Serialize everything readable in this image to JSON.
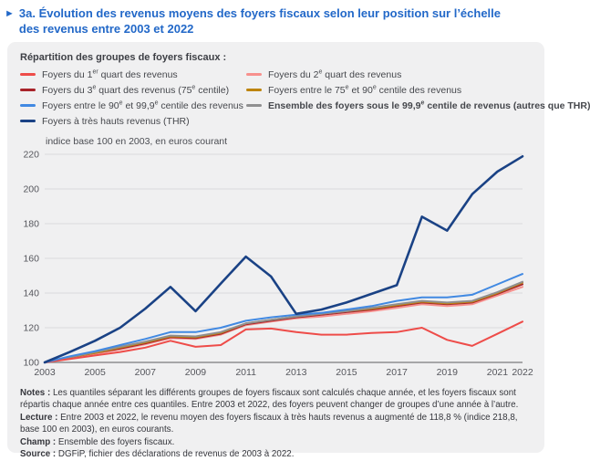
{
  "title": {
    "arrow": "►",
    "lines": [
      "3a. Évolution des revenus moyens des foyers fiscaux selon leur position sur l’échelle",
      "des revenus entre 2003 et 2022"
    ]
  },
  "legend": {
    "header": "Répartition des groupes de foyers fiscaux :",
    "items": [
      {
        "label": "Foyers du 1^{er} quart des revenus",
        "color": "#ee4c49",
        "bold": false
      },
      {
        "label": "Foyers du 2^{e} quart des revenus",
        "color": "#f7908d",
        "bold": false
      },
      {
        "label": "Foyers du 3^{e} quart des revenus (75^{e} centile)",
        "color": "#a8232a",
        "bold": false
      },
      {
        "label": "Foyers entre le 75^{e} et 90^{e} centile des revenus",
        "color": "#bd840e",
        "bold": false
      },
      {
        "label": "Foyers entre le 90^{e} et 99,9^{e} centile des revenus",
        "color": "#4189e2",
        "bold": false
      },
      {
        "label": "Ensemble des foyers sous le 99,9^{e} centile de revenus (autres que THR)",
        "color": "#8f8f90",
        "bold": true
      },
      {
        "label": "Foyers à très hauts revenus (THR)",
        "color": "#1a4285",
        "bold": false
      }
    ]
  },
  "chart_data": {
    "type": "line",
    "title": "Évolution des revenus moyens des foyers fiscaux selon leur position sur l’échelle des revenus entre 2003 et 2022",
    "unit_label": "indice base 100 en 2003, en euros courant",
    "x": [
      2003,
      2004,
      2005,
      2006,
      2007,
      2008,
      2009,
      2010,
      2011,
      2012,
      2013,
      2014,
      2015,
      2016,
      2017,
      2018,
      2019,
      2020,
      2021,
      2022
    ],
    "x_tick_labels": [
      "2003",
      "2005",
      "2007",
      "2009",
      "2011",
      "2013",
      "2015",
      "2017",
      "2019",
      "2021",
      "2022"
    ],
    "ylim": [
      100,
      220
    ],
    "y_ticks": [
      100,
      120,
      140,
      160,
      180,
      200,
      220
    ],
    "grid": "horizontal",
    "legend_position": "top",
    "series": [
      {
        "id": "quart2",
        "name": "Foyers du 2e quart des revenus",
        "color": "#f7908d",
        "width": 2,
        "values": [
          100,
          102.5,
          105,
          107.5,
          110.5,
          114,
          113.5,
          116,
          121.5,
          123.5,
          125.5,
          126.5,
          128,
          129.5,
          131.5,
          133.5,
          132.5,
          133.5,
          138.5,
          143.5
        ]
      },
      {
        "id": "quart3",
        "name": "Foyers du 3e quart des revenus (75e centile)",
        "color": "#a8232a",
        "width": 2,
        "values": [
          100,
          103,
          105.5,
          108,
          111,
          114.5,
          114,
          116.5,
          122,
          124,
          126,
          127.5,
          129,
          130.5,
          132.5,
          134.5,
          133.5,
          134.5,
          139.5,
          145
        ]
      },
      {
        "id": "c75_90",
        "name": "Foyers entre le 75e et 90e centile des revenus",
        "color": "#bd840e",
        "width": 2,
        "values": [
          100,
          103,
          105.5,
          108.5,
          111.5,
          115,
          114.5,
          117,
          122.5,
          124.5,
          126.5,
          128,
          129.5,
          131,
          133,
          135,
          134,
          135,
          140,
          146
        ]
      },
      {
        "id": "ensemble",
        "name": "Ensemble des foyers sous le 99,9e centile de revenus (autres que THR)",
        "color": "#8f8f90",
        "width": 2,
        "values": [
          100,
          103,
          106,
          109,
          112,
          115.5,
          115,
          117.5,
          122.5,
          124.5,
          126.5,
          128,
          129.5,
          131.5,
          133.5,
          135.5,
          134.5,
          135.5,
          140.5,
          146.5
        ]
      },
      {
        "id": "quart1",
        "name": "Foyers du 1er quart des revenus",
        "color": "#ee4c49",
        "width": 2,
        "values": [
          100,
          102,
          104,
          106,
          108.5,
          112.5,
          109,
          110,
          119,
          119.5,
          117.5,
          116,
          116,
          117,
          117.5,
          120,
          113,
          109.5,
          116.5,
          123.5
        ]
      },
      {
        "id": "c90_999",
        "name": "Foyers entre le 90e et 99,9e centile des revenus",
        "color": "#4189e2",
        "width": 2,
        "values": [
          100,
          103.5,
          106.5,
          110,
          113.5,
          117.5,
          117.5,
          120,
          124,
          126,
          127.5,
          128.5,
          130.5,
          132.5,
          135.5,
          137.5,
          137.5,
          139,
          145,
          151
        ]
      },
      {
        "id": "thr",
        "name": "Foyers à très hauts revenus (THR)",
        "color": "#1a4285",
        "width": 2.6,
        "values": [
          100,
          106,
          112.5,
          120,
          131,
          143.5,
          129.5,
          145.5,
          161,
          149.5,
          128,
          130.5,
          134.5,
          139.5,
          144.5,
          184,
          176,
          197,
          210,
          218.8
        ]
      }
    ]
  },
  "notes": [
    {
      "label": "Notes :",
      "text": " Les quantiles séparant les différents groupes de foyers fiscaux sont calculés chaque année, et les foyers fiscaux sont répartis chaque année entre ces quantiles. Entre 2003 et 2022, des foyers peuvent changer de groupes d’une année à l’autre."
    },
    {
      "label": "Lecture :",
      "text": " Entre 2003 et 2022, le revenu moyen des foyers fiscaux à très hauts revenus a augmenté de 118,8 % (indice 218,8, base 100 en 2003), en euros courants."
    },
    {
      "label": "Champ :",
      "text": " Ensemble des foyers fiscaux."
    },
    {
      "label": "Source :",
      "text": " DGFiP, fichier des déclarations de revenus de 2003 à 2022."
    }
  ]
}
